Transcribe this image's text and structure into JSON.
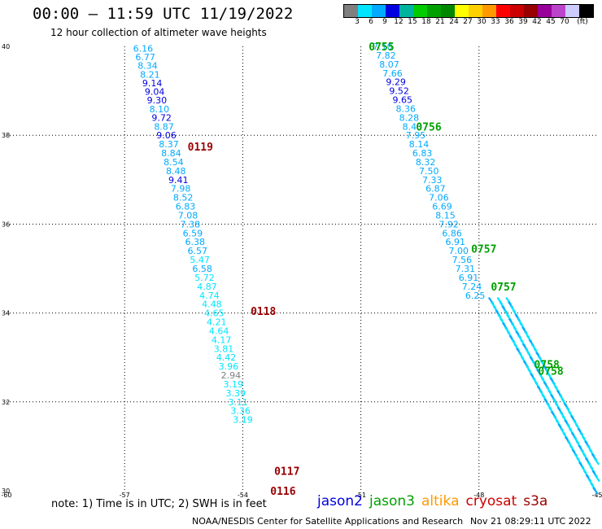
{
  "title": "00:00 – 11:59 UTC 11/19/2022",
  "subtitle": "12 hour collection of altimeter wave heights",
  "colorbar": {
    "colors": [
      "#7f7f7f",
      "#00e5ff",
      "#00aaff",
      "#0000e0",
      "#00b4a0",
      "#00cc00",
      "#00a000",
      "#008800",
      "#ffff00",
      "#ffd000",
      "#ff9900",
      "#ff0000",
      "#cc0000",
      "#990000",
      "#990099",
      "#bb44cc",
      "#ccccff",
      "#000000"
    ],
    "labels": [
      "3",
      "6",
      "9",
      "12",
      "15",
      "18",
      "21",
      "24",
      "27",
      "30",
      "33",
      "36",
      "39",
      "42",
      "45",
      "70",
      "(ft)"
    ]
  },
  "axes": {
    "x_ticks": [
      -60,
      -57,
      -54,
      -51,
      -48,
      -45
    ],
    "y_ticks": [
      30,
      32,
      34,
      36,
      38,
      40
    ],
    "x_tick_labels": [
      "-60",
      "-57",
      "-54",
      "-51",
      "-48",
      "-45"
    ],
    "y_tick_labels": [
      "30",
      "32",
      "34",
      "36",
      "38",
      "40"
    ]
  },
  "tracks": [
    {
      "satellite": "cryosat",
      "time_labels": [
        {
          "text": "0119",
          "lon": -55.4,
          "lat": 37.75
        },
        {
          "text": "0118",
          "lon": -53.8,
          "lat": 34.05
        },
        {
          "text": "0117",
          "lon": -53.2,
          "lat": 30.45
        },
        {
          "text": "0116",
          "lon": -53.3,
          "lat": 30.0
        }
      ],
      "points": [
        {
          "lat": 39.95,
          "v": "6.16",
          "c": "#00aaff"
        },
        {
          "lat": 39.76,
          "v": "6.77",
          "c": "#00aaff"
        },
        {
          "lat": 39.57,
          "v": "8.34",
          "c": "#00aaff"
        },
        {
          "lat": 39.37,
          "v": "8.21",
          "c": "#00aaff"
        },
        {
          "lat": 39.18,
          "v": "9.14",
          "c": "#0000e0"
        },
        {
          "lat": 38.98,
          "v": "9.04",
          "c": "#0000e0"
        },
        {
          "lat": 38.79,
          "v": "9.30",
          "c": "#0000e0"
        },
        {
          "lat": 38.59,
          "v": "8.10",
          "c": "#00aaff"
        },
        {
          "lat": 38.4,
          "v": "9.72",
          "c": "#0000e0"
        },
        {
          "lat": 38.2,
          "v": "8.87",
          "c": "#00aaff"
        },
        {
          "lat": 38.0,
          "v": "9.06",
          "c": "#0000e0"
        },
        {
          "lat": 37.8,
          "v": "8.37",
          "c": "#00aaff"
        },
        {
          "lat": 37.6,
          "v": "8.84",
          "c": "#00aaff"
        },
        {
          "lat": 37.4,
          "v": "8.54",
          "c": "#00aaff"
        },
        {
          "lat": 37.2,
          "v": "8.48",
          "c": "#00aaff"
        },
        {
          "lat": 37.0,
          "v": "9.41",
          "c": "#0000e0"
        },
        {
          "lat": 36.8,
          "v": "7.98",
          "c": "#00aaff"
        },
        {
          "lat": 36.6,
          "v": "8.52",
          "c": "#00aaff"
        },
        {
          "lat": 36.4,
          "v": "6.83",
          "c": "#00aaff"
        },
        {
          "lat": 36.2,
          "v": "7.08",
          "c": "#00aaff"
        },
        {
          "lat": 36.0,
          "v": "7.38",
          "c": "#00aaff"
        },
        {
          "lat": 35.8,
          "v": "6.59",
          "c": "#00aaff"
        },
        {
          "lat": 35.6,
          "v": "6.38",
          "c": "#00aaff"
        },
        {
          "lat": 35.4,
          "v": "6.57",
          "c": "#00aaff"
        },
        {
          "lat": 35.2,
          "v": "5.47",
          "c": "#00e5ff"
        },
        {
          "lat": 35.0,
          "v": "6.58",
          "c": "#00aaff"
        },
        {
          "lat": 34.8,
          "v": "5.72",
          "c": "#00e5ff"
        },
        {
          "lat": 34.6,
          "v": "4.87",
          "c": "#00e5ff"
        },
        {
          "lat": 34.4,
          "v": "4.74",
          "c": "#00e5ff"
        },
        {
          "lat": 34.2,
          "v": "4.48",
          "c": "#00e5ff"
        },
        {
          "lat": 34.0,
          "v": "4.65",
          "c": "#00e5ff"
        },
        {
          "lat": 33.8,
          "v": "4.21",
          "c": "#00e5ff"
        },
        {
          "lat": 33.6,
          "v": "4.64",
          "c": "#00e5ff"
        },
        {
          "lat": 33.4,
          "v": "4.17",
          "c": "#00e5ff"
        },
        {
          "lat": 33.2,
          "v": "3.81",
          "c": "#00e5ff"
        },
        {
          "lat": 33.0,
          "v": "4.42",
          "c": "#00e5ff"
        },
        {
          "lat": 32.8,
          "v": "3.96",
          "c": "#00e5ff"
        },
        {
          "lat": 32.6,
          "v": "2.94",
          "c": "#7f7f7f"
        },
        {
          "lat": 32.4,
          "v": "3.19",
          "c": "#00e5ff"
        },
        {
          "lat": 32.2,
          "v": "3.39",
          "c": "#00e5ff"
        },
        {
          "lat": 32.0,
          "v": "3.11",
          "c": "#00e5ff"
        },
        {
          "lat": 31.8,
          "v": "3.36",
          "c": "#00e5ff"
        },
        {
          "lat": 31.6,
          "v": "3.19",
          "c": "#00e5ff"
        }
      ]
    },
    {
      "satellite": "jason3",
      "time_labels": [
        {
          "text": "0755",
          "lon": -50.8,
          "lat": 40.0
        },
        {
          "text": "0756",
          "lon": -49.6,
          "lat": 38.2
        },
        {
          "text": "0757",
          "lon": -48.2,
          "lat": 35.45
        },
        {
          "text": "0757",
          "lon": -47.7,
          "lat": 34.6
        },
        {
          "text": "0758",
          "lon": -46.6,
          "lat": 32.85
        },
        {
          "text": "0758",
          "lon": -46.5,
          "lat": 32.7
        }
      ],
      "points": [
        {
          "lat": 40.0,
          "v": "7.10",
          "c": "#00aaff"
        },
        {
          "lat": 39.8,
          "v": "7.82",
          "c": "#00aaff"
        },
        {
          "lat": 39.6,
          "v": "8.07",
          "c": "#00aaff"
        },
        {
          "lat": 39.4,
          "v": "7.66",
          "c": "#00aaff"
        },
        {
          "lat": 39.2,
          "v": "9.29",
          "c": "#0000e0"
        },
        {
          "lat": 39.0,
          "v": "9.52",
          "c": "#0000e0"
        },
        {
          "lat": 38.8,
          "v": "9.65",
          "c": "#0000e0"
        },
        {
          "lat": 38.6,
          "v": "8.36",
          "c": "#00aaff"
        },
        {
          "lat": 38.4,
          "v": "8.28",
          "c": "#00aaff"
        },
        {
          "lat": 38.2,
          "v": "8.43",
          "c": "#00aaff"
        },
        {
          "lat": 38.0,
          "v": "7.95",
          "c": "#00aaff"
        },
        {
          "lat": 37.8,
          "v": "8.14",
          "c": "#00aaff"
        },
        {
          "lat": 37.6,
          "v": "6.83",
          "c": "#00aaff"
        },
        {
          "lat": 37.4,
          "v": "8.32",
          "c": "#00aaff"
        },
        {
          "lat": 37.2,
          "v": "7.50",
          "c": "#00aaff"
        },
        {
          "lat": 37.0,
          "v": "7.33",
          "c": "#00aaff"
        },
        {
          "lat": 36.8,
          "v": "6.87",
          "c": "#00aaff"
        },
        {
          "lat": 36.6,
          "v": "7.06",
          "c": "#00aaff"
        },
        {
          "lat": 36.4,
          "v": "6.69",
          "c": "#00aaff"
        },
        {
          "lat": 36.2,
          "v": "8.15",
          "c": "#00aaff"
        },
        {
          "lat": 36.0,
          "v": "7.92",
          "c": "#00aaff"
        },
        {
          "lat": 35.8,
          "v": "6.86",
          "c": "#00aaff"
        },
        {
          "lat": 35.6,
          "v": "6.91",
          "c": "#00aaff"
        },
        {
          "lat": 35.4,
          "v": "7.00",
          "c": "#00aaff"
        },
        {
          "lat": 35.2,
          "v": "7.56",
          "c": "#00aaff"
        },
        {
          "lat": 35.0,
          "v": "7.31",
          "c": "#00aaff"
        },
        {
          "lat": 34.8,
          "v": "6.91",
          "c": "#00aaff"
        },
        {
          "lat": 34.6,
          "v": "7.24",
          "c": "#00aaff"
        },
        {
          "lat": 34.4,
          "v": "6.25",
          "c": "#00aaff"
        }
      ]
    }
  ],
  "note": "note: 1) Time is in UTC; 2) SWH is in feet",
  "legend": [
    {
      "label": "jason2",
      "color": "#0000e0"
    },
    {
      "label": "jason3",
      "color": "#00a000"
    },
    {
      "label": "altika",
      "color": "#ff9900"
    },
    {
      "label": "cryosat",
      "color": "#cc0000"
    },
    {
      "label": "s3a",
      "color": "#990000"
    }
  ],
  "credit": "NOAA/NESDIS Center for Satellite Applications and Research",
  "timestamp": "Nov 21 08:29:11 UTC 2022"
}
